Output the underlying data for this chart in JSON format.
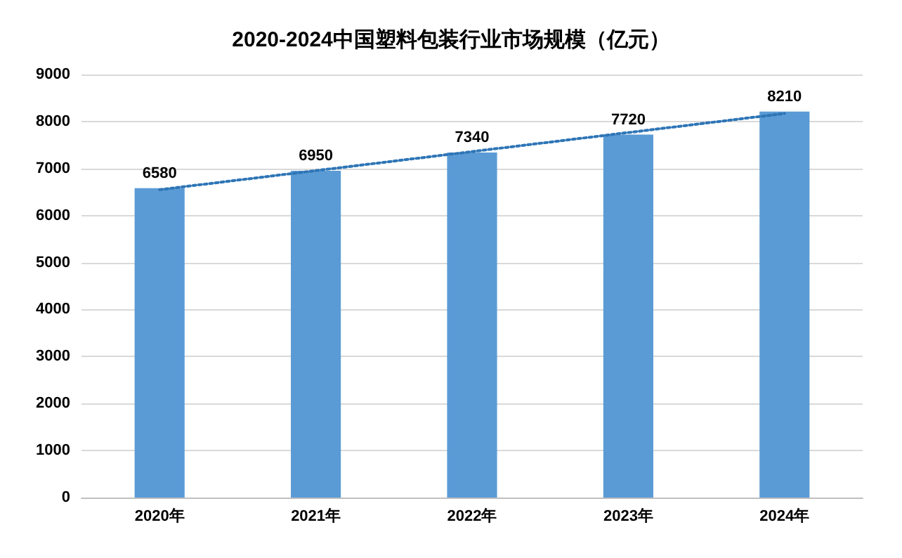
{
  "chart_data": {
    "type": "bar",
    "title": "2020-2024中国塑料包装行业市场规模（亿元）",
    "categories": [
      "2020年",
      "2021年",
      "2022年",
      "2023年",
      "2024年"
    ],
    "series": [
      {
        "color": "#5b9bd5",
        "values": [
          6580,
          6950,
          7340,
          7720,
          8210
        ],
        "value_labels": [
          "6580",
          "6950",
          "7340",
          "7720",
          "8210"
        ]
      },
      {
        "type": "line",
        "color": "#2e75b6",
        "x": [
          "2020年",
          "2024年"
        ],
        "values": [
          6550,
          8170
        ],
        "line_style": "dotted",
        "marker": "none"
      }
    ],
    "ylim": [
      0,
      9000
    ],
    "yticks": [
      0,
      1000,
      2000,
      3000,
      4000,
      5000,
      6000,
      7000,
      8000,
      9000
    ],
    "grid": "y"
  }
}
